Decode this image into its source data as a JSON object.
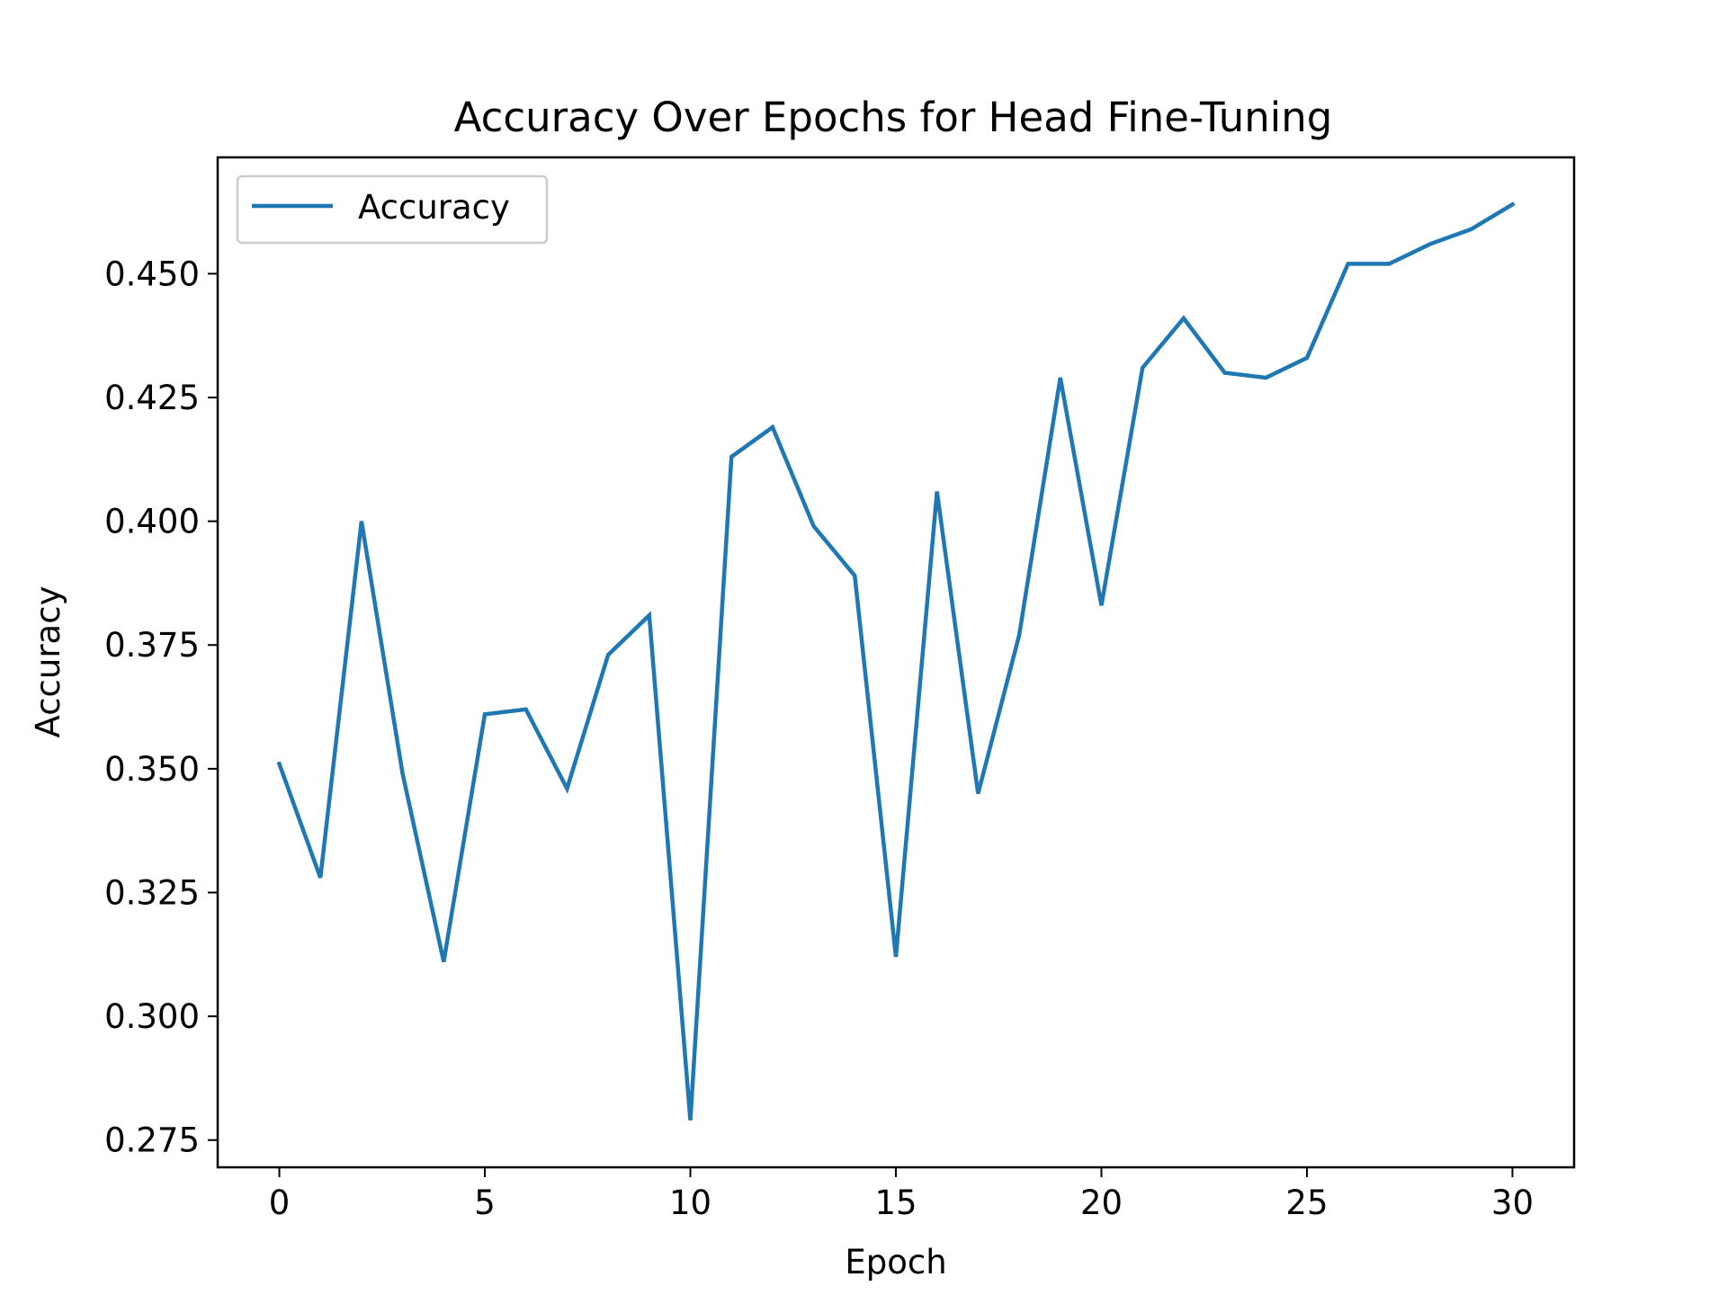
{
  "colors": {
    "series": "#1f77b4",
    "axes": "#000000",
    "background": "#ffffff",
    "legend_border": "#cccccc"
  },
  "chart_data": {
    "type": "line",
    "title": "Accuracy Over Epochs for Head Fine-Tuning",
    "xlabel": "Epoch",
    "ylabel": "Accuracy",
    "xlim": [
      -1.5,
      31.5
    ],
    "ylim": [
      0.2695,
      0.4735
    ],
    "xticks": [
      0,
      5,
      10,
      15,
      20,
      25,
      30
    ],
    "xtick_labels": [
      "0",
      "5",
      "10",
      "15",
      "20",
      "25",
      "30"
    ],
    "yticks": [
      0.275,
      0.3,
      0.325,
      0.35,
      0.375,
      0.4,
      0.425,
      0.45
    ],
    "ytick_labels": [
      "0.275",
      "0.300",
      "0.325",
      "0.350",
      "0.375",
      "0.400",
      "0.425",
      "0.450"
    ],
    "grid": false,
    "legend_position": "upper left",
    "x": [
      0,
      1,
      2,
      3,
      4,
      5,
      6,
      7,
      8,
      9,
      10,
      11,
      12,
      13,
      14,
      15,
      16,
      17,
      18,
      19,
      20,
      21,
      22,
      23,
      24,
      25,
      26,
      27,
      28,
      29,
      30
    ],
    "series": [
      {
        "name": "Accuracy",
        "values": [
          0.351,
          0.328,
          0.4,
          0.349,
          0.311,
          0.361,
          0.362,
          0.346,
          0.373,
          0.381,
          0.279,
          0.413,
          0.419,
          0.399,
          0.389,
          0.312,
          0.406,
          0.345,
          0.377,
          0.429,
          0.383,
          0.431,
          0.441,
          0.43,
          0.429,
          0.433,
          0.452,
          0.452,
          0.456,
          0.459,
          0.464
        ]
      }
    ]
  }
}
